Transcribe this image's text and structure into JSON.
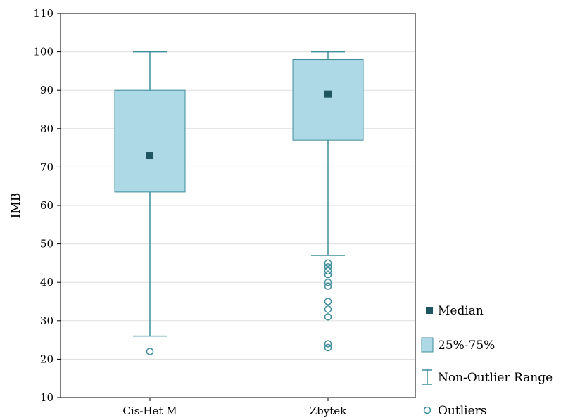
{
  "chart_data": {
    "type": "boxplot",
    "title": "",
    "xlabel": "",
    "ylabel": "IMB",
    "ylim": [
      10,
      110
    ],
    "yticks": [
      10,
      20,
      30,
      40,
      50,
      60,
      70,
      80,
      90,
      100,
      110
    ],
    "grid": true,
    "legend_position": "right-bottom",
    "categories": [
      "Cis-Het M",
      "Zbytek"
    ],
    "series": [
      {
        "category": "Cis-Het M",
        "median": 73,
        "q1": 63.5,
        "q3": 90,
        "whisker_low": 26,
        "whisker_high": 100,
        "outliers": [
          22
        ]
      },
      {
        "category": "Zbytek",
        "median": 89,
        "q1": 77,
        "q3": 98,
        "whisker_low": 47,
        "whisker_high": 100,
        "outliers": [
          45,
          44,
          43,
          42,
          40,
          39,
          35,
          33,
          31,
          24,
          23
        ]
      }
    ],
    "legend": [
      {
        "key": "median",
        "label": "Median"
      },
      {
        "key": "box",
        "label": "25%-75%"
      },
      {
        "key": "range",
        "label": "Non-Outlier Range"
      },
      {
        "key": "outliers",
        "label": "Outliers"
      }
    ],
    "colors": {
      "box_fill": "#add8e6",
      "stroke": "#3d8e9a",
      "median": "#1f5560",
      "grid": "#dddddd"
    }
  }
}
